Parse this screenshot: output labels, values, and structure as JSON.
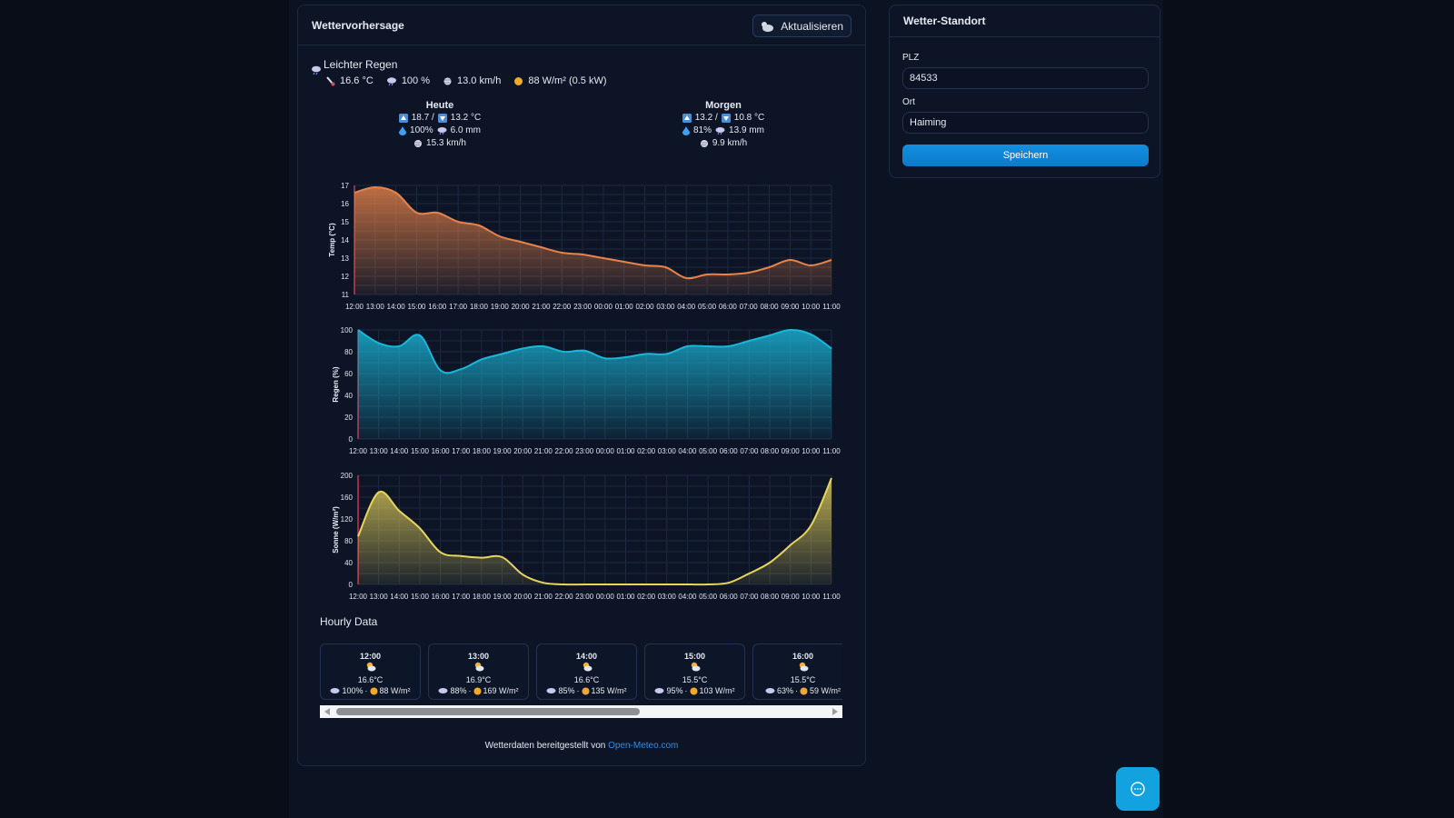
{
  "weather": {
    "title": "Wettervorhersage",
    "refresh_label": "Aktualisieren",
    "current": {
      "condition": "Leichter Regen",
      "temp": "16.6 °C",
      "rain": "100 %",
      "wind": "13.0 km/h",
      "solar": "88 W/m² (0.5 kW)"
    },
    "days": [
      {
        "label": "Heute",
        "max": "18.7 /",
        "min": "13.2 °C",
        "rain_prob": "100%",
        "rain_sum": "6.0 mm",
        "wind": "15.3 km/h"
      },
      {
        "label": "Morgen",
        "max": "13.2 /",
        "min": "10.8 °C",
        "rain_prob": "81%",
        "rain_sum": "13.9 mm",
        "wind": "9.9 km/h"
      }
    ],
    "hourly_title": "Hourly Data",
    "hourly": [
      {
        "time": "12:00",
        "temp": "16.6°C",
        "rain": "100%",
        "solar": "88 W/m²"
      },
      {
        "time": "13:00",
        "temp": "16.9°C",
        "rain": "88%",
        "solar": "169 W/m²"
      },
      {
        "time": "14:00",
        "temp": "16.6°C",
        "rain": "85%",
        "solar": "135 W/m²"
      },
      {
        "time": "15:00",
        "temp": "15.5°C",
        "rain": "95%",
        "solar": "103 W/m²"
      },
      {
        "time": "16:00",
        "temp": "15.5°C",
        "rain": "63%",
        "solar": "59 W/m²"
      }
    ],
    "footer_text": "Wetterdaten bereitgestellt von",
    "footer_link": "Open-Meteo.com"
  },
  "location": {
    "title": "Wetter-Standort",
    "plz_label": "PLZ",
    "plz_value": "84533",
    "ort_label": "Ort",
    "ort_value": "Haiming",
    "save_label": "Speichern"
  },
  "colors": {
    "temp": "#e8834a",
    "rain": "#1ab7d8",
    "solar": "#e9d55c",
    "accent": "#138fe0"
  },
  "chart_data": [
    {
      "type": "area",
      "ylabel": "Temp (°C)",
      "ylim": [
        11,
        17
      ],
      "yticks": [
        11,
        12,
        13,
        14,
        15,
        16,
        17
      ],
      "x": [
        "12:00",
        "13:00",
        "14:00",
        "15:00",
        "16:00",
        "17:00",
        "18:00",
        "19:00",
        "20:00",
        "21:00",
        "22:00",
        "23:00",
        "00:00",
        "01:00",
        "02:00",
        "03:00",
        "04:00",
        "05:00",
        "06:00",
        "07:00",
        "08:00",
        "09:00",
        "10:00",
        "11:00"
      ],
      "values": [
        16.6,
        16.9,
        16.6,
        15.5,
        15.5,
        15.0,
        14.8,
        14.2,
        13.9,
        13.6,
        13.3,
        13.2,
        13.0,
        12.8,
        12.6,
        12.5,
        11.9,
        12.1,
        12.1,
        12.2,
        12.5,
        12.9,
        12.6,
        12.9
      ],
      "grid": true,
      "color": "#e8834a"
    },
    {
      "type": "area",
      "ylabel": "Regen (%)",
      "ylim": [
        0,
        100
      ],
      "yticks": [
        0,
        20,
        40,
        60,
        80,
        100
      ],
      "x": [
        "12:00",
        "13:00",
        "14:00",
        "15:00",
        "16:00",
        "17:00",
        "18:00",
        "19:00",
        "20:00",
        "21:00",
        "22:00",
        "23:00",
        "00:00",
        "01:00",
        "02:00",
        "03:00",
        "04:00",
        "05:00",
        "06:00",
        "07:00",
        "08:00",
        "09:00",
        "10:00",
        "11:00"
      ],
      "values": [
        100,
        88,
        85,
        95,
        63,
        64,
        73,
        78,
        83,
        85,
        80,
        81,
        74,
        75,
        78,
        78,
        85,
        85,
        85,
        90,
        95,
        100,
        96,
        83
      ],
      "grid": true,
      "color": "#1ab7d8"
    },
    {
      "type": "area",
      "ylabel": "Sonne (W/m²)",
      "ylim": [
        0,
        200
      ],
      "yticks": [
        0,
        40,
        80,
        120,
        160,
        200
      ],
      "x": [
        "12:00",
        "13:00",
        "14:00",
        "15:00",
        "16:00",
        "17:00",
        "18:00",
        "19:00",
        "20:00",
        "21:00",
        "22:00",
        "23:00",
        "00:00",
        "01:00",
        "02:00",
        "03:00",
        "04:00",
        "05:00",
        "06:00",
        "07:00",
        "08:00",
        "09:00",
        "10:00",
        "11:00"
      ],
      "values": [
        88,
        169,
        135,
        103,
        59,
        52,
        49,
        50,
        18,
        3,
        0,
        0,
        0,
        0,
        0,
        0,
        0,
        0,
        3,
        20,
        40,
        72,
        108,
        195
      ],
      "grid": true,
      "color": "#e9d55c"
    }
  ]
}
